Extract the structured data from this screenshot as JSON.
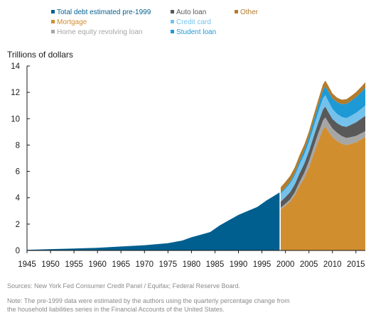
{
  "chart_data": {
    "type": "area",
    "stacked": true,
    "title": "",
    "ylabel": "Trillions of dollars",
    "xlabel": "",
    "xlim": [
      1945,
      2017
    ],
    "ylim": [
      0,
      14
    ],
    "yticks": [
      0,
      2,
      4,
      6,
      8,
      10,
      12,
      14
    ],
    "xticks": [
      1945,
      1950,
      1955,
      1960,
      1965,
      1970,
      1975,
      1980,
      1985,
      1990,
      1995,
      2000,
      2005,
      2010,
      2015
    ],
    "grid": false,
    "legend_position": "top",
    "pre1999_series": {
      "name": "Total debt estimated pre-1999",
      "color": "#005f8f",
      "x": [
        1945,
        1947,
        1950,
        1955,
        1960,
        1965,
        1970,
        1975,
        1978,
        1980,
        1982,
        1984,
        1986,
        1988,
        1990,
        1992,
        1994,
        1996,
        1998.75
      ],
      "y": [
        0.05,
        0.07,
        0.1,
        0.15,
        0.2,
        0.3,
        0.4,
        0.55,
        0.75,
        1.0,
        1.2,
        1.4,
        1.9,
        2.3,
        2.7,
        3.0,
        3.3,
        3.8,
        4.4
      ]
    },
    "x": [
      1999,
      2000,
      2001,
      2002,
      2003,
      2004,
      2005,
      2006,
      2007,
      2008,
      2008.5,
      2009,
      2010,
      2011,
      2012,
      2013,
      2014,
      2015,
      2016,
      2017
    ],
    "series": [
      {
        "name": "Mortgage",
        "color": "#d18e2f",
        "values": [
          3.1,
          3.4,
          3.7,
          4.2,
          4.9,
          5.5,
          6.3,
          7.3,
          8.3,
          9.2,
          9.4,
          9.1,
          8.6,
          8.3,
          8.1,
          8.0,
          8.1,
          8.2,
          8.4,
          8.6
        ]
      },
      {
        "name": "Home equity revolving loan",
        "color": "#a6a6a6",
        "values": [
          0.15,
          0.15,
          0.18,
          0.22,
          0.3,
          0.38,
          0.48,
          0.56,
          0.62,
          0.68,
          0.7,
          0.7,
          0.66,
          0.63,
          0.58,
          0.54,
          0.51,
          0.49,
          0.47,
          0.45
        ]
      },
      {
        "name": "Auto loan",
        "color": "#595959",
        "values": [
          0.45,
          0.5,
          0.55,
          0.6,
          0.64,
          0.7,
          0.74,
          0.78,
          0.8,
          0.82,
          0.82,
          0.78,
          0.72,
          0.73,
          0.77,
          0.84,
          0.94,
          1.03,
          1.1,
          1.17
        ]
      },
      {
        "name": "Credit card",
        "color": "#74c2ec",
        "values": [
          0.6,
          0.63,
          0.66,
          0.68,
          0.7,
          0.71,
          0.72,
          0.75,
          0.8,
          0.86,
          0.87,
          0.84,
          0.76,
          0.7,
          0.68,
          0.67,
          0.68,
          0.71,
          0.74,
          0.78
        ]
      },
      {
        "name": "Student loan",
        "color": "#1d9ad6",
        "values": [
          0.08,
          0.1,
          0.13,
          0.17,
          0.24,
          0.3,
          0.37,
          0.45,
          0.52,
          0.61,
          0.65,
          0.72,
          0.8,
          0.88,
          0.97,
          1.08,
          1.14,
          1.2,
          1.26,
          1.34
        ]
      },
      {
        "name": "Other",
        "color": "#b37b2c",
        "values": [
          0.42,
          0.43,
          0.44,
          0.45,
          0.45,
          0.43,
          0.42,
          0.42,
          0.42,
          0.44,
          0.45,
          0.43,
          0.38,
          0.35,
          0.34,
          0.35,
          0.36,
          0.38,
          0.4,
          0.43
        ]
      }
    ],
    "legend": [
      {
        "name": "Total debt estimated pre-1999",
        "color": "#005f8f"
      },
      {
        "name": "Auto loan",
        "color": "#595959"
      },
      {
        "name": "Other",
        "color": "#b37b2c"
      },
      {
        "name": "Mortgage",
        "color": "#d18e2f"
      },
      {
        "name": "Credit card",
        "color": "#74c2ec"
      },
      {
        "name": "Home equity revolving loan",
        "color": "#a6a6a6"
      },
      {
        "name": "Student loan",
        "color": "#1d9ad6"
      }
    ]
  },
  "footer": {
    "sources": "Sources: New York Fed Consumer Credit Panel / Equifax; Federal Reserve Board.",
    "note_line1": "Note: The pre-1999 data were estimated by the authors using the quarterly percentage change from",
    "note_line2": "the household liabilities series in the Financial Accounts of the United States."
  }
}
